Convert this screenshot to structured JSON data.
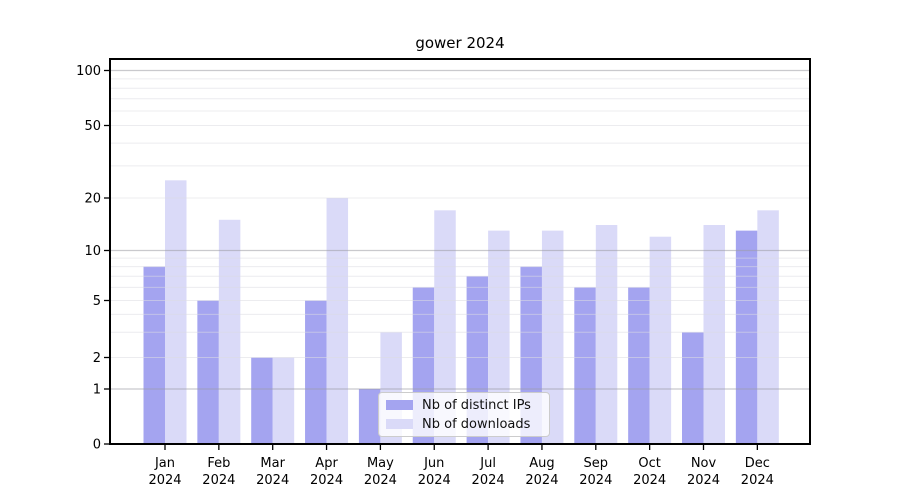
{
  "chart_data": {
    "type": "bar",
    "title": "gower 2024",
    "year": "2024",
    "categories": [
      "Jan",
      "Feb",
      "Mar",
      "Apr",
      "May",
      "Jun",
      "Jul",
      "Aug",
      "Sep",
      "Oct",
      "Nov",
      "Dec"
    ],
    "series": [
      {
        "name": "Nb of distinct IPs",
        "color": "#a4a4f0",
        "values": [
          8,
          5,
          2,
          5,
          1,
          6,
          7,
          8,
          6,
          6,
          3,
          13
        ]
      },
      {
        "name": "Nb of downloads",
        "color": "#dadaf8",
        "values": [
          25,
          15,
          2,
          20,
          3,
          17,
          13,
          13,
          14,
          12,
          14,
          17
        ]
      }
    ],
    "y_axis": {
      "scale": "log",
      "tick_labels": [
        "100",
        "50",
        "20",
        "10",
        "5",
        "2",
        "1",
        "0"
      ],
      "tick_values": [
        100,
        50,
        20,
        10,
        5,
        2,
        1,
        0
      ]
    },
    "grid": true,
    "legend_position": "bottom-center"
  }
}
